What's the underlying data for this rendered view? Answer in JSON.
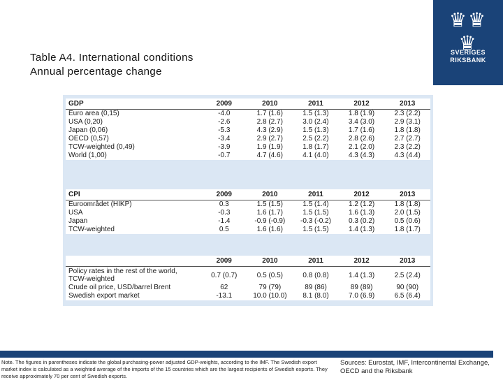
{
  "logo": {
    "icon": "crown-icon",
    "line1": "SVERIGES",
    "line2": "RIKSBANK"
  },
  "title": {
    "line1": "Table A4. International conditions",
    "line2": "Annual percentage change"
  },
  "years": [
    "2009",
    "2010",
    "2011",
    "2012",
    "2013"
  ],
  "gdp": {
    "heading": "GDP",
    "rows": [
      {
        "label": "Euro area (0,15)",
        "values": [
          "-4.0",
          "1.7 (1.6)",
          "1.5 (1.3)",
          "1.8 (1.9)",
          "2.3 (2.2)"
        ]
      },
      {
        "label": "USA (0,20)",
        "values": [
          "-2.6",
          "2.8 (2.7)",
          "3.0 (2.4)",
          "3.4 (3.0)",
          "2.9 (3.1)"
        ]
      },
      {
        "label": "Japan (0,06)",
        "values": [
          "-5.3",
          "4.3 (2.9)",
          "1.5 (1.3)",
          "1.7 (1.6)",
          "1.8 (1.8)"
        ]
      },
      {
        "label": "OECD (0,57)",
        "values": [
          "-3.4",
          "2.9 (2.7)",
          "2.5 (2.2)",
          "2.8 (2.6)",
          "2.7 (2.7)"
        ]
      },
      {
        "label": "TCW-weighted (0,49)",
        "values": [
          "-3.9",
          "1.9 (1.9)",
          "1.8 (1.7)",
          "2.1 (2.0)",
          "2.3 (2.2)"
        ]
      },
      {
        "label": "World (1,00)",
        "values": [
          "-0.7",
          "4.7 (4.6)",
          "4.1 (4.0)",
          "4.3 (4.3)",
          "4.3 (4.4)"
        ]
      }
    ]
  },
  "cpi": {
    "heading": "CPI",
    "rows": [
      {
        "label": "Euroområdet (HIKP)",
        "values": [
          "0.3",
          "1.5 (1.5)",
          "1.5 (1.4)",
          "1.2 (1.2)",
          "1.8 (1.8)"
        ]
      },
      {
        "label": "USA",
        "values": [
          "-0.3",
          "1.6 (1.7)",
          "1.5 (1.5)",
          "1.6 (1.3)",
          "2.0 (1.5)"
        ]
      },
      {
        "label": "Japan",
        "values": [
          "-1.4",
          "-0.9 (-0.9)",
          "-0.3 (-0.2)",
          "0.3 (0.2)",
          "0.5 (0.6)"
        ]
      },
      {
        "label": "TCW-weighted",
        "values": [
          "0.5",
          "1.6 (1.6)",
          "1.5 (1.5)",
          "1.4 (1.3)",
          "1.8 (1.7)"
        ]
      }
    ]
  },
  "other": {
    "heading": "",
    "rows": [
      {
        "label": "Policy rates in the rest of the world, TCW-weighted",
        "values": [
          "0.7 (0.7)",
          "0.5 (0.5)",
          "0.8 (0.8)",
          "1.4 (1.3)",
          "2.5 (2.4)"
        ]
      },
      {
        "label": "Crude oil price, USD/barrel Brent",
        "values": [
          "62",
          "79 (79)",
          "89 (86)",
          "89 (89)",
          "90 (90)"
        ]
      },
      {
        "label": "Swedish export market",
        "values": [
          "-13.1",
          "10.0 (10.0)",
          "8.1 (8.0)",
          "7.0 (6.9)",
          "6.5 (6.4)"
        ]
      }
    ]
  },
  "note": "Note. The figures in parentheses indicate the global purchasing-power adjusted GDP-weights, according to the IMF. The Swedish export market index is calculated as a weighted average of the imports of the 15 countries which are the largest recipients of Swedish exports. They receive approximately 70 per cent of Swedish exports.",
  "sources": "Sources: Eurostat, IMF, Intercontinental Exchange, OECD and the Riksbank"
}
